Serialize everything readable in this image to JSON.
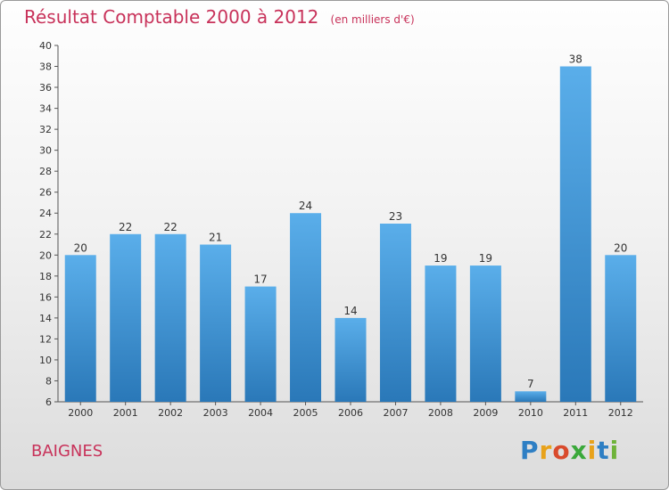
{
  "header": {
    "title": "Résultat Comptable 2000 à 2012",
    "unit": "(en milliers d'€)"
  },
  "footer": {
    "commune": "BAIGNES",
    "logo": "Proxiti"
  },
  "colors": {
    "title": "#c8325a",
    "bar_top": "#5aaeea",
    "bar_bottom": "#2a78b8"
  },
  "chart_data": {
    "type": "bar",
    "categories": [
      "2000",
      "2001",
      "2002",
      "2003",
      "2004",
      "2005",
      "2006",
      "2007",
      "2008",
      "2009",
      "2010",
      "2011",
      "2012"
    ],
    "values": [
      20,
      22,
      22,
      21,
      17,
      24,
      14,
      23,
      19,
      19,
      7,
      38,
      20
    ],
    "title": "Résultat Comptable 2000 à 2012",
    "xlabel": "",
    "ylabel": "",
    "ylim": [
      6,
      40
    ],
    "yticks": [
      6,
      8,
      10,
      12,
      14,
      16,
      18,
      20,
      22,
      24,
      26,
      28,
      30,
      32,
      34,
      36,
      38,
      40
    ],
    "grid": false,
    "legend": "none"
  }
}
